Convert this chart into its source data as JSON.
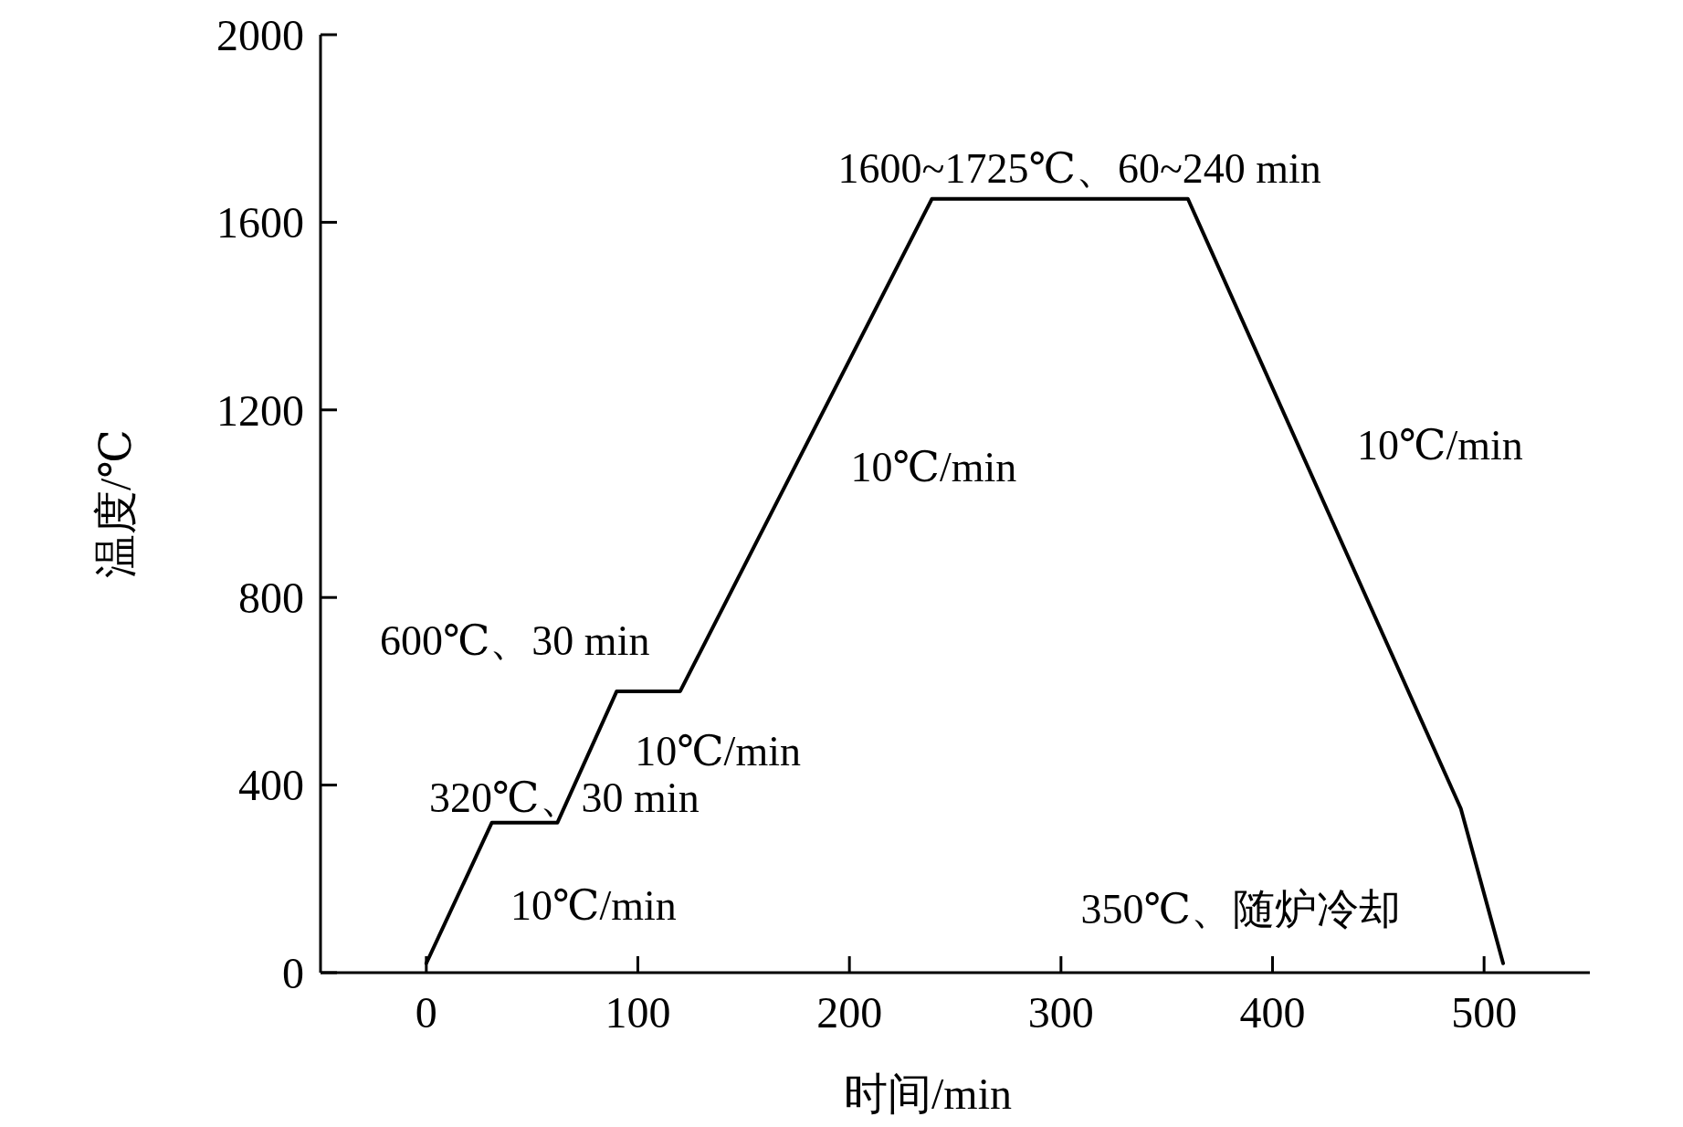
{
  "chart_data": {
    "type": "line",
    "xlabel": "时间/min",
    "ylabel": "温度/℃",
    "x": [
      0,
      31,
      62,
      90,
      120,
      239,
      360,
      489,
      509
    ],
    "values": [
      20,
      320,
      320,
      600,
      600,
      1650,
      1650,
      350,
      20
    ],
    "color": "#000000",
    "marker": "none",
    "line_style": "solid",
    "grid": false,
    "xlim": [
      -50,
      550
    ],
    "xticks": [
      0,
      100,
      200,
      300,
      400,
      500
    ],
    "ylim": [
      0,
      2000
    ],
    "yticks": [
      0,
      400,
      800,
      1200,
      1600,
      2000
    ],
    "annotations": [
      "1600~1725℃、60~240 min",
      "10℃/min",
      "10℃/min",
      "600℃、30 min",
      "10℃/min",
      "320℃、30 min",
      "10℃/min",
      "350℃、随炉冷却"
    ]
  }
}
